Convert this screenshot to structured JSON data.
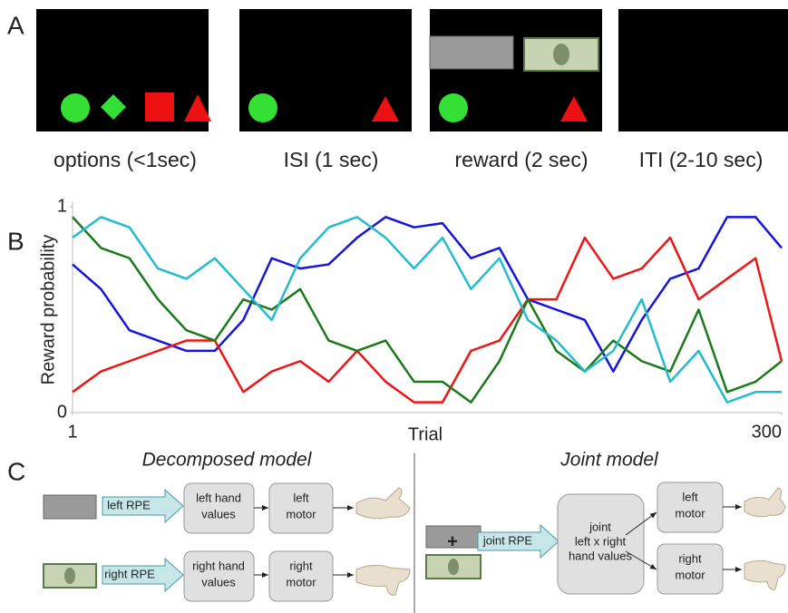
{
  "panel_a": {
    "label": "A",
    "captions": [
      "options (<1sec)",
      "ISI (1 sec)",
      "reward (2 sec)",
      "ITI (2-10 sec)"
    ]
  },
  "panel_b": {
    "label": "B"
  },
  "chart_data": {
    "type": "line",
    "y_label": "Reward probability",
    "x_label": "Trial",
    "xlim": [
      1,
      300
    ],
    "xticks": [
      1,
      300
    ],
    "ylim": [
      0,
      1
    ],
    "yticks": [
      0,
      1
    ],
    "x": [
      1,
      13,
      25,
      37,
      49,
      61,
      73,
      85,
      97,
      109,
      121,
      133,
      145,
      157,
      169,
      181,
      193,
      205,
      217,
      229,
      241,
      253,
      265,
      277,
      289,
      300
    ],
    "series": [
      {
        "color": "#1414e0",
        "values": [
          0.72,
          0.6,
          0.4,
          0.35,
          0.3,
          0.3,
          0.45,
          0.75,
          0.7,
          0.72,
          0.85,
          0.95,
          0.9,
          0.92,
          0.75,
          0.8,
          0.55,
          0.5,
          0.45,
          0.2,
          0.45,
          0.65,
          0.7,
          0.95,
          0.95,
          0.8
        ]
      },
      {
        "color": "#ee1515",
        "values": [
          0.1,
          0.2,
          0.25,
          0.3,
          0.35,
          0.35,
          0.1,
          0.2,
          0.25,
          0.15,
          0.3,
          0.15,
          0.05,
          0.05,
          0.3,
          0.35,
          0.55,
          0.55,
          0.85,
          0.65,
          0.7,
          0.85,
          0.55,
          0.65,
          0.75,
          0.25
        ]
      },
      {
        "color": "#1a7a1a",
        "values": [
          0.95,
          0.8,
          0.75,
          0.55,
          0.4,
          0.35,
          0.55,
          0.5,
          0.6,
          0.35,
          0.3,
          0.35,
          0.15,
          0.15,
          0.05,
          0.25,
          0.55,
          0.3,
          0.2,
          0.35,
          0.25,
          0.2,
          0.5,
          0.1,
          0.15,
          0.25
        ]
      },
      {
        "color": "#22bccc",
        "values": [
          0.85,
          0.95,
          0.9,
          0.7,
          0.65,
          0.75,
          0.6,
          0.45,
          0.75,
          0.9,
          0.95,
          0.85,
          0.7,
          0.85,
          0.6,
          0.75,
          0.45,
          0.35,
          0.2,
          0.3,
          0.55,
          0.15,
          0.3,
          0.05,
          0.1,
          0.1
        ]
      }
    ]
  },
  "panel_c": {
    "label": "C",
    "decomposed": {
      "title": "Decomposed model",
      "left_rpe": "left RPE",
      "right_rpe": "right RPE",
      "left_values": [
        "left hand",
        "values"
      ],
      "left_motor": [
        "left",
        "motor"
      ],
      "right_values": [
        "right hand",
        "values"
      ],
      "right_motor": [
        "right",
        "motor"
      ]
    },
    "joint": {
      "title": "Joint model",
      "plus": "+",
      "joint_rpe": "joint RPE",
      "joint_values": [
        "joint",
        "left x right",
        "hand values"
      ],
      "left_motor": [
        "left",
        "motor"
      ],
      "right_motor": [
        "right",
        "motor"
      ]
    }
  }
}
